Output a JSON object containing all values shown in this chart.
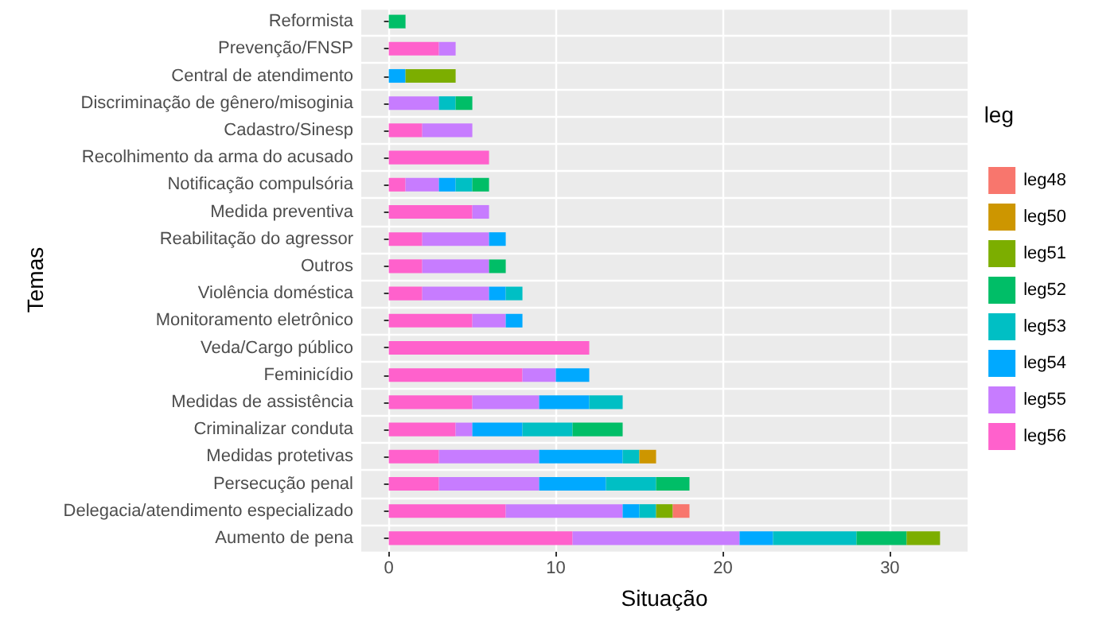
{
  "chart_data": {
    "type": "bar",
    "orientation": "horizontal",
    "stacked": true,
    "xlabel": "Situação",
    "ylabel": "Temas",
    "legend_title": "leg",
    "legend": "right",
    "grid": true,
    "categories": [
      "Reformista",
      "Prevenção/FNSP",
      "Central de atendimento",
      "Discriminação de gênero/misoginia",
      "Cadastro/Sinesp",
      "Recolhimento da arma do acusado",
      "Notificação compulsória",
      "Medida preventiva",
      "Reabilitação do agressor",
      "Outros",
      "Violência doméstica",
      "Monitoramento eletrônico",
      "Veda/Cargo público",
      "Feminicídio",
      "Medidas de assistência",
      "Criminalizar conduta",
      "Medidas protetivas",
      "Persecução penal",
      "Delegacia/atendimento especializado",
      "Aumento de pena"
    ],
    "xlim": [
      -1.65,
      34.65
    ],
    "xticks": [
      0,
      10,
      20,
      30
    ],
    "series": [
      {
        "name": "leg56",
        "color": "#ff61cc",
        "values": [
          null,
          3,
          null,
          null,
          2,
          6,
          1,
          5,
          2,
          2,
          2,
          5,
          12,
          8,
          5,
          4,
          3,
          3,
          7,
          11
        ]
      },
      {
        "name": "leg55",
        "color": "#c77cff",
        "values": [
          null,
          1,
          null,
          3,
          3,
          null,
          2,
          1,
          4,
          4,
          4,
          2,
          null,
          2,
          4,
          1,
          6,
          6,
          7,
          10
        ]
      },
      {
        "name": "leg54",
        "color": "#00a9ff",
        "values": [
          null,
          null,
          1,
          null,
          null,
          null,
          1,
          null,
          1,
          null,
          1,
          1,
          null,
          2,
          3,
          3,
          5,
          4,
          1,
          2
        ]
      },
      {
        "name": "leg53",
        "color": "#00bfc4",
        "values": [
          null,
          null,
          null,
          1,
          null,
          null,
          1,
          null,
          null,
          null,
          1,
          null,
          null,
          null,
          2,
          3,
          1,
          3,
          1,
          5
        ]
      },
      {
        "name": "leg52",
        "color": "#00be67",
        "values": [
          1,
          null,
          null,
          1,
          null,
          null,
          1,
          null,
          null,
          1,
          null,
          null,
          null,
          null,
          null,
          3,
          null,
          2,
          null,
          3
        ]
      },
      {
        "name": "leg51",
        "color": "#7cae00",
        "values": [
          null,
          null,
          3,
          null,
          null,
          null,
          null,
          null,
          null,
          null,
          null,
          null,
          null,
          null,
          null,
          null,
          null,
          null,
          1,
          2
        ]
      },
      {
        "name": "leg50",
        "color": "#cd9600",
        "values": [
          null,
          null,
          null,
          null,
          null,
          null,
          null,
          null,
          null,
          null,
          null,
          null,
          null,
          null,
          null,
          null,
          1,
          null,
          null,
          null
        ]
      },
      {
        "name": "leg48",
        "color": "#f8766d",
        "values": [
          null,
          null,
          null,
          null,
          null,
          null,
          null,
          null,
          null,
          null,
          null,
          null,
          null,
          null,
          null,
          null,
          null,
          null,
          1,
          null
        ]
      }
    ]
  }
}
